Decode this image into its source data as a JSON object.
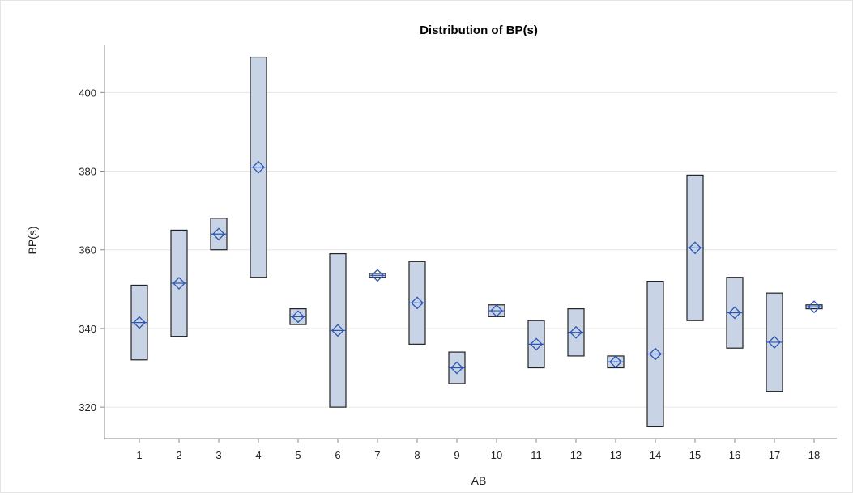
{
  "chart_data": {
    "type": "box",
    "title": "Distribution of BP(s)",
    "xlabel": "AB",
    "ylabel": "BP(s)",
    "ylim": [
      312,
      412
    ],
    "yticks": [
      320,
      340,
      360,
      380,
      400
    ],
    "categories": [
      "1",
      "2",
      "3",
      "4",
      "5",
      "6",
      "7",
      "8",
      "9",
      "10",
      "11",
      "12",
      "13",
      "14",
      "15",
      "16",
      "17",
      "18"
    ],
    "boxes": [
      {
        "category": "1",
        "low": 332,
        "high": 351,
        "mean": 341.5
      },
      {
        "category": "2",
        "low": 338,
        "high": 365,
        "mean": 351.5
      },
      {
        "category": "3",
        "low": 360,
        "high": 368,
        "mean": 364
      },
      {
        "category": "4",
        "low": 353,
        "high": 409,
        "mean": 381
      },
      {
        "category": "5",
        "low": 341,
        "high": 345,
        "mean": 343
      },
      {
        "category": "6",
        "low": 320,
        "high": 359,
        "mean": 339.5
      },
      {
        "category": "7",
        "low": 353,
        "high": 354,
        "mean": 353.5
      },
      {
        "category": "8",
        "low": 336,
        "high": 357,
        "mean": 346.5
      },
      {
        "category": "9",
        "low": 326,
        "high": 334,
        "mean": 330
      },
      {
        "category": "10",
        "low": 343,
        "high": 346,
        "mean": 344.5
      },
      {
        "category": "11",
        "low": 330,
        "high": 342,
        "mean": 336
      },
      {
        "category": "12",
        "low": 333,
        "high": 345,
        "mean": 339
      },
      {
        "category": "13",
        "low": 330,
        "high": 333,
        "mean": 331.5
      },
      {
        "category": "14",
        "low": 315,
        "high": 352,
        "mean": 333.5
      },
      {
        "category": "15",
        "low": 342,
        "high": 379,
        "mean": 360.5
      },
      {
        "category": "16",
        "low": 335,
        "high": 353,
        "mean": 344
      },
      {
        "category": "17",
        "low": 324,
        "high": 349,
        "mean": 336.5
      },
      {
        "category": "18",
        "low": 345,
        "high": 346,
        "mean": 345.5
      }
    ],
    "grid": true,
    "colors": {
      "box_fill": "#c8d4e6",
      "box_stroke": "#222222",
      "mean_marker": "#2b55b0",
      "grid": "#e6e6e6",
      "axis": "#888888"
    }
  }
}
